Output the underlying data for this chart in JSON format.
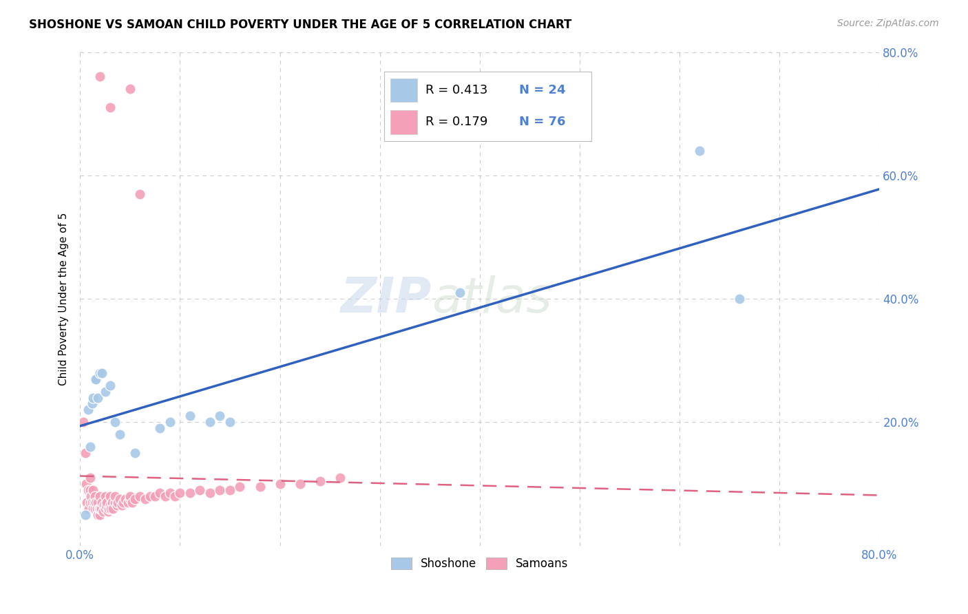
{
  "title": "SHOSHONE VS SAMOAN CHILD POVERTY UNDER THE AGE OF 5 CORRELATION CHART",
  "source": "Source: ZipAtlas.com",
  "ylabel": "Child Poverty Under the Age of 5",
  "xlim": [
    0,
    0.8
  ],
  "ylim": [
    0,
    0.8
  ],
  "shoshone_color": "#A8C8E8",
  "samoan_color": "#F4A0B8",
  "shoshone_line_color": "#3060C0",
  "samoan_line_color": "#E06080",
  "legend_r_shoshone": "0.413",
  "legend_n_shoshone": "24",
  "legend_r_samoan": "0.179",
  "legend_n_samoan": "76",
  "watermark_zip": "ZIP",
  "watermark_atlas": "atlas",
  "background_color": "#FFFFFF",
  "grid_color": "#CCCCCC",
  "tick_color": "#5080D0",
  "shoshone_x": [
    0.005,
    0.008,
    0.01,
    0.012,
    0.013,
    0.015,
    0.016,
    0.018,
    0.02,
    0.022,
    0.025,
    0.03,
    0.035,
    0.04,
    0.055,
    0.08,
    0.09,
    0.11,
    0.13,
    0.14,
    0.15,
    0.38,
    0.62,
    0.66
  ],
  "shoshone_y": [
    0.05,
    0.22,
    0.16,
    0.23,
    0.24,
    0.27,
    0.27,
    0.24,
    0.28,
    0.28,
    0.25,
    0.26,
    0.2,
    0.18,
    0.15,
    0.19,
    0.2,
    0.21,
    0.2,
    0.21,
    0.2,
    0.41,
    0.64,
    0.4
  ],
  "samoan_x": [
    0.003,
    0.005,
    0.006,
    0.007,
    0.008,
    0.009,
    0.01,
    0.01,
    0.01,
    0.011,
    0.012,
    0.013,
    0.013,
    0.014,
    0.015,
    0.015,
    0.016,
    0.017,
    0.018,
    0.018,
    0.019,
    0.02,
    0.02,
    0.02,
    0.021,
    0.022,
    0.023,
    0.024,
    0.025,
    0.025,
    0.026,
    0.027,
    0.028,
    0.029,
    0.03,
    0.03,
    0.031,
    0.032,
    0.033,
    0.035,
    0.035,
    0.037,
    0.038,
    0.04,
    0.042,
    0.043,
    0.045,
    0.048,
    0.05,
    0.05,
    0.052,
    0.055,
    0.06,
    0.065,
    0.07,
    0.075,
    0.08,
    0.085,
    0.09,
    0.095,
    0.1,
    0.11,
    0.12,
    0.13,
    0.14,
    0.15,
    0.16,
    0.18,
    0.2,
    0.22,
    0.24,
    0.26,
    0.02,
    0.03,
    0.05,
    0.06
  ],
  "samoan_y": [
    0.2,
    0.15,
    0.1,
    0.07,
    0.09,
    0.06,
    0.07,
    0.09,
    0.11,
    0.08,
    0.07,
    0.06,
    0.09,
    0.07,
    0.06,
    0.08,
    0.07,
    0.06,
    0.05,
    0.07,
    0.06,
    0.05,
    0.06,
    0.08,
    0.06,
    0.07,
    0.055,
    0.065,
    0.06,
    0.08,
    0.065,
    0.07,
    0.055,
    0.06,
    0.065,
    0.08,
    0.06,
    0.07,
    0.06,
    0.07,
    0.08,
    0.065,
    0.07,
    0.075,
    0.065,
    0.07,
    0.075,
    0.07,
    0.075,
    0.08,
    0.07,
    0.075,
    0.08,
    0.075,
    0.08,
    0.08,
    0.085,
    0.08,
    0.085,
    0.08,
    0.085,
    0.085,
    0.09,
    0.085,
    0.09,
    0.09,
    0.095,
    0.095,
    0.1,
    0.1,
    0.105,
    0.11,
    0.76,
    0.71,
    0.74,
    0.57
  ]
}
